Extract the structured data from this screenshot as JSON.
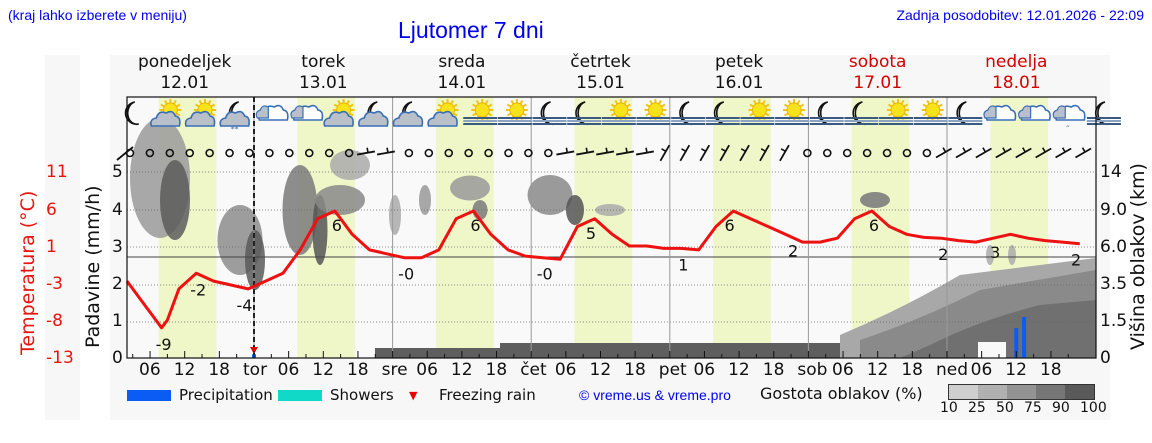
{
  "header": {
    "hint": "(kraj lahko izberete v meniju)",
    "title": "Ljutomer 7 dni",
    "updated": "Zadnja posodobitev: 12.01.2026 - 22:09"
  },
  "days": [
    {
      "name": "ponedeljek",
      "date": "12.01",
      "weekend": false
    },
    {
      "name": "torek",
      "date": "13.01",
      "weekend": false
    },
    {
      "name": "sreda",
      "date": "14.01",
      "weekend": false
    },
    {
      "name": "četrtek",
      "date": "15.01",
      "weekend": false
    },
    {
      "name": "petek",
      "date": "16.01",
      "weekend": false
    },
    {
      "name": "sobota",
      "date": "17.01",
      "weekend": true
    },
    {
      "name": "nedelja",
      "date": "18.01",
      "weekend": true
    }
  ],
  "axes": {
    "temp_label": "Temperatura (°C)",
    "temp_ticks": [
      "11",
      "6",
      "1",
      "-3",
      "-8",
      "-13"
    ],
    "precip_label": "Padavine (mm/h)",
    "precip_ticks": [
      "5",
      "4",
      "3",
      "2",
      "1",
      "0"
    ],
    "cloud_label": "Višina oblakov (km)",
    "cloud_ticks": [
      "14",
      "9.0",
      "6.0",
      "3.5",
      "1.5",
      "0"
    ],
    "x_ticks": [
      "06",
      "12",
      "18",
      "tor",
      "06",
      "12",
      "18",
      "sre",
      "06",
      "12",
      "18",
      "čet",
      "06",
      "12",
      "18",
      "pet",
      "06",
      "12",
      "18",
      "sob",
      "06",
      "12",
      "18",
      "ned",
      "06",
      "12",
      "18"
    ]
  },
  "legend": {
    "precipitation": {
      "label": "Precipitation",
      "color": "#0a5cf5"
    },
    "showers": {
      "label": "Showers",
      "color": "#10d9c8"
    },
    "freezing_rain": {
      "label": "Freezing rain",
      "color": "#e80000"
    },
    "copyright": "© vreme.us & vreme.pro",
    "density_label": "Gostota oblakov (%)",
    "density_ticks": [
      "10",
      "25",
      "50",
      "75",
      "90",
      "100"
    ],
    "density_colors": [
      "#cfcfcf",
      "#b0b0b0",
      "#939393",
      "#767676",
      "#5a5a5a"
    ]
  },
  "icons": [
    "moon-icon",
    "sun-cloud-icon",
    "sun-cloud-icon",
    "moon-cloud-snow-icon",
    "cloud-icon",
    "cloud-icon",
    "sun-cloud-icon",
    "moon-cloud-icon",
    "moon-cloud-icon",
    "sun-cloud-icon",
    "sun-fog-icon",
    "sun-fog-icon",
    "moon-fog-icon",
    "moon-fog-icon",
    "sun-fog-icon",
    "sun-fog-icon",
    "moon-fog-icon",
    "moon-fog-icon",
    "sun-fog-icon",
    "sun-fog-icon",
    "moon-fog-icon",
    "moon-fog-icon",
    "sun-fog-icon",
    "sun-fog-icon",
    "moon-fog-icon",
    "cloud-icon",
    "cloud-icon",
    "cloud-rain-icon",
    "moon-fog-icon"
  ],
  "chart_data": {
    "type": "line",
    "title": "Ljutomer 7 dni",
    "xlabel": "",
    "ylabel": "Temperatura (°C)",
    "ylim": [
      -13,
      11
    ],
    "x_unit": "hours since 12.01 00:00",
    "series": [
      {
        "name": "Temperatura (°C)",
        "color": "#ee1111",
        "x": [
          2,
          5,
          8,
          9,
          11,
          14,
          17,
          20,
          23,
          26,
          29,
          32,
          35,
          38,
          41,
          44,
          47,
          50,
          53,
          56,
          59,
          62,
          65,
          68,
          71,
          74,
          77,
          80,
          83,
          86,
          89,
          92,
          95,
          98,
          101,
          104,
          107,
          110,
          113,
          116,
          119,
          122,
          125,
          128,
          131,
          134,
          137,
          140,
          143,
          146,
          149,
          152,
          155,
          158,
          161,
          164,
          167
        ],
        "y": [
          -3,
          -6,
          -9,
          -8,
          -4,
          -2,
          -3,
          -3.5,
          -4,
          -3,
          -2,
          1,
          5,
          6,
          3,
          1,
          0.5,
          0,
          0,
          1,
          5,
          6,
          3,
          1,
          0.2,
          0,
          -0.2,
          4,
          5,
          3,
          1.5,
          1.5,
          1.2,
          1.2,
          1,
          4,
          6,
          5,
          4,
          3,
          2,
          2,
          2.5,
          5,
          6,
          4,
          3,
          2.6,
          2.5,
          2.2,
          2,
          2.5,
          3,
          2.5,
          2.2,
          2,
          1.8
        ],
        "labels": [
          {
            "x": 8,
            "text": "-9"
          },
          {
            "x": 14,
            "text": "-2"
          },
          {
            "x": 22,
            "text": "-4"
          },
          {
            "x": 38,
            "text": "6"
          },
          {
            "x": 50,
            "text": "-0"
          },
          {
            "x": 62,
            "text": "6"
          },
          {
            "x": 74,
            "text": "-0"
          },
          {
            "x": 82,
            "text": "5"
          },
          {
            "x": 98,
            "text": "1"
          },
          {
            "x": 106,
            "text": "6"
          },
          {
            "x": 117,
            "text": "2"
          },
          {
            "x": 131,
            "text": "6"
          },
          {
            "x": 143,
            "text": "2"
          },
          {
            "x": 152,
            "text": "3"
          },
          {
            "x": 166,
            "text": "2"
          }
        ]
      },
      {
        "name": "Precipitation (mm/h)",
        "color": "#0a5cf5",
        "x": [
          24,
          156,
          157
        ],
        "y": [
          0.1,
          0.8,
          1.1
        ]
      }
    ],
    "freezing_rain_markers_x": [
      24
    ],
    "current_time_marker_x": 24,
    "secondary_axes": {
      "precip_range": [
        0,
        5
      ],
      "cloud_height_km_ticks": [
        0,
        1.5,
        3.5,
        6.0,
        9.0,
        14
      ]
    },
    "legend_position": "bottom",
    "grid": true
  }
}
